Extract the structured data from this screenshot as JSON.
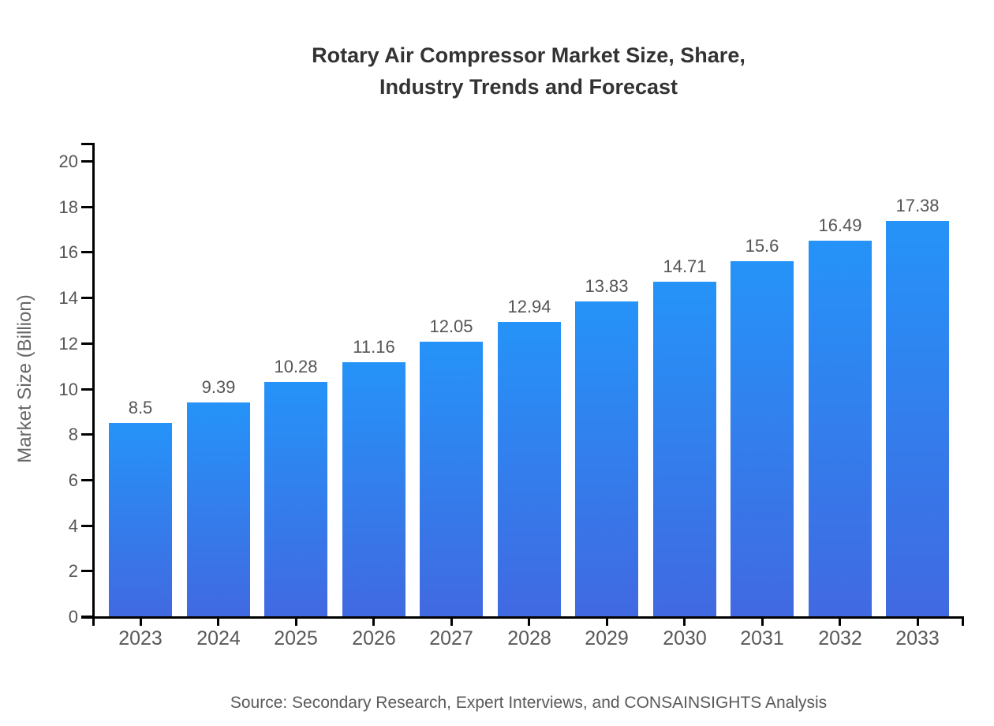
{
  "chart": {
    "title_lines": [
      "Rotary Air Compressor Market Size, Share,",
      "Industry Trends and Forecast"
    ],
    "ylabel": "Market Size (Billion)",
    "source": "Source: Secondary Research, Expert Interviews, and CONSAINSIGHTS Analysis"
  },
  "chart_data": {
    "type": "bar",
    "title": "Rotary Air Compressor Market Size, Share, Industry Trends and Forecast",
    "xlabel": "",
    "ylabel": "Market Size (Billion)",
    "categories": [
      "2023",
      "2024",
      "2025",
      "2026",
      "2027",
      "2028",
      "2029",
      "2030",
      "2031",
      "2032",
      "2033"
    ],
    "values": [
      8.5,
      9.39,
      10.28,
      11.16,
      12.05,
      12.94,
      13.83,
      14.71,
      15.6,
      16.49,
      17.38
    ],
    "value_labels": [
      "8.5",
      "9.39",
      "10.28",
      "11.16",
      "12.05",
      "12.94",
      "13.83",
      "14.71",
      "15.6",
      "16.49",
      "17.38"
    ],
    "ylim": [
      0,
      20
    ],
    "y_ticks": [
      0,
      2,
      4,
      6,
      8,
      10,
      12,
      14,
      16,
      18,
      20
    ],
    "grid": false,
    "legend": false,
    "source": "Source: Secondary Research, Expert Interviews, and CONSAINSIGHTS Analysis",
    "colors": {
      "bar_gradient_top": "#2593F8",
      "bar_gradient_bottom": "#4169E1",
      "axis": "#000000",
      "value_label": "#555555",
      "tick_label": "#595959",
      "title": "#333333"
    }
  }
}
